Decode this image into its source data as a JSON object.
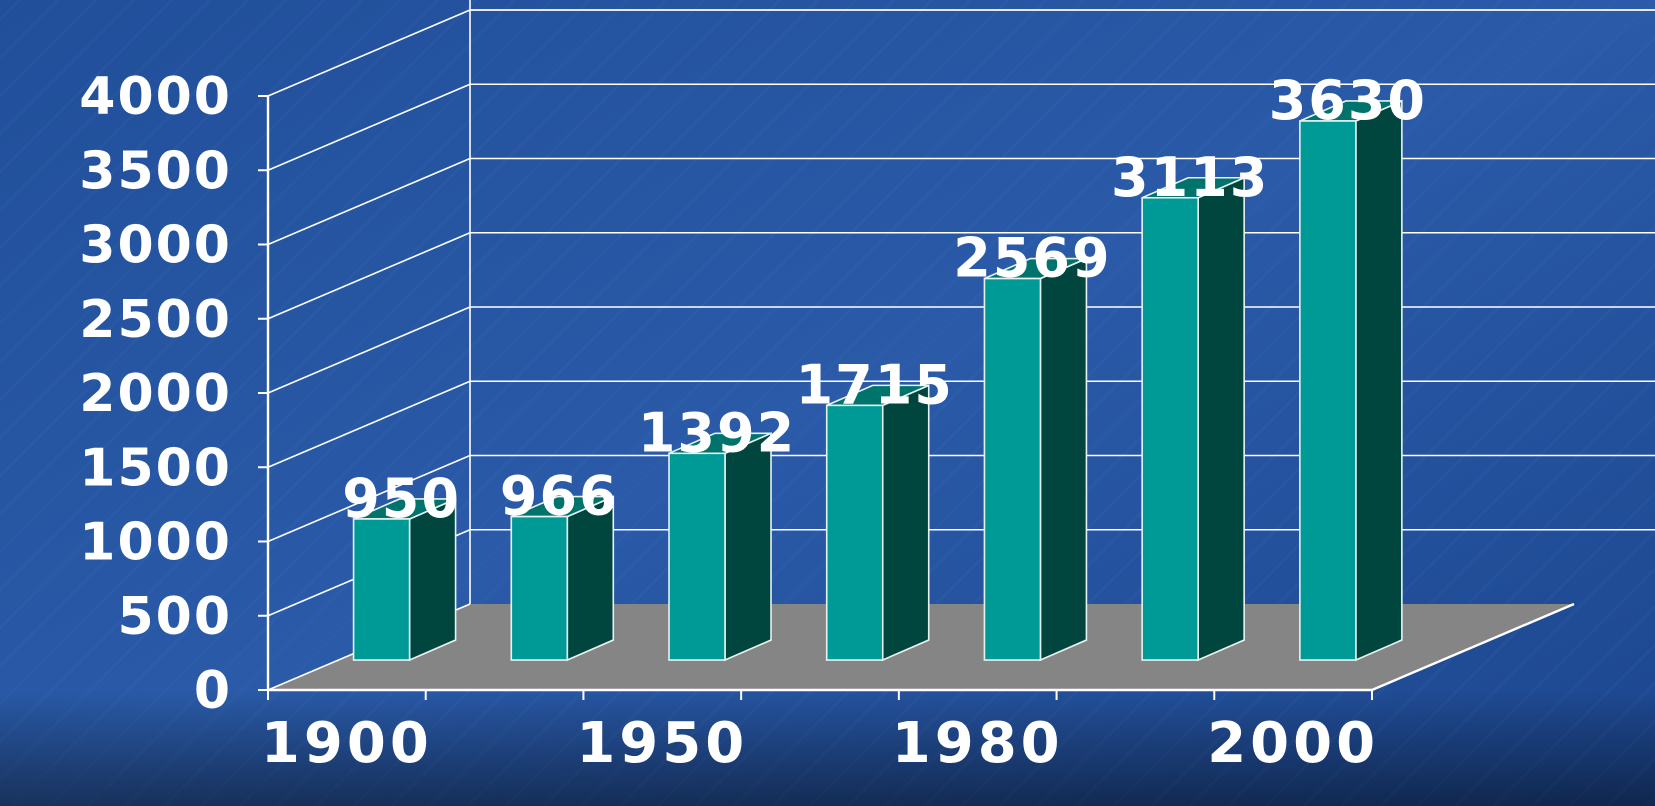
{
  "chart_data": {
    "type": "bar",
    "style": "3d-column",
    "categories": [
      "1900",
      "",
      "1950",
      "",
      "1980",
      "",
      "2000"
    ],
    "x_tick_labels": [
      "1900",
      "1950",
      "1980",
      "2000"
    ],
    "values": [
      950,
      966,
      1392,
      1715,
      2569,
      3113,
      3630
    ],
    "data_labels": [
      "950",
      "966",
      "1392",
      "1715",
      "2569",
      "3113",
      "3630"
    ],
    "y_ticks": [
      "0",
      "500",
      "1000",
      "1500",
      "2000",
      "2500",
      "3000",
      "3500",
      "4000"
    ],
    "ylim": [
      0,
      4000
    ],
    "grid": true,
    "legend": "none",
    "title": "",
    "xlabel": "",
    "ylabel": "",
    "colors": {
      "background": "#1f4f9c",
      "bar_front": "#009a96",
      "bar_side": "#00463f",
      "bar_top": "#00736c",
      "floor": "#858585",
      "grid": "#ffffff",
      "text": "#ffffff"
    }
  }
}
